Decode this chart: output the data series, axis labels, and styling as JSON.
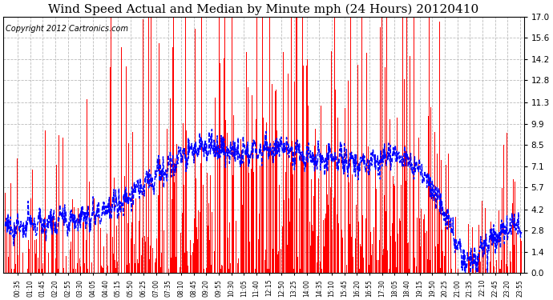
{
  "title": "Wind Speed Actual and Median by Minute mph (24 Hours) 20120410",
  "copyright_text": "Copyright 2012 Cartronics.com",
  "yticks": [
    0.0,
    1.4,
    2.8,
    4.2,
    5.7,
    7.1,
    8.5,
    9.9,
    11.3,
    12.8,
    14.2,
    15.6,
    17.0
  ],
  "ylim": [
    0.0,
    17.0
  ],
  "bar_color": "#ff0000",
  "line_color": "#0000ff",
  "bg_color": "#ffffff",
  "grid_color": "#bbbbbb",
  "title_fontsize": 11,
  "copyright_fontsize": 7,
  "n_minutes": 1440,
  "label_times": [
    "00:35",
    "01:10",
    "01:45",
    "02:20",
    "02:55",
    "03:30",
    "04:05",
    "04:40",
    "05:15",
    "05:50",
    "06:25",
    "07:00",
    "07:35",
    "08:10",
    "08:45",
    "09:20",
    "09:55",
    "10:30",
    "11:05",
    "11:40",
    "12:15",
    "12:50",
    "13:25",
    "14:00",
    "14:35",
    "15:10",
    "15:45",
    "16:20",
    "16:55",
    "17:30",
    "18:05",
    "18:40",
    "19:15",
    "19:50",
    "20:25",
    "21:00",
    "21:35",
    "22:10",
    "22:45",
    "23:20",
    "23:55"
  ]
}
